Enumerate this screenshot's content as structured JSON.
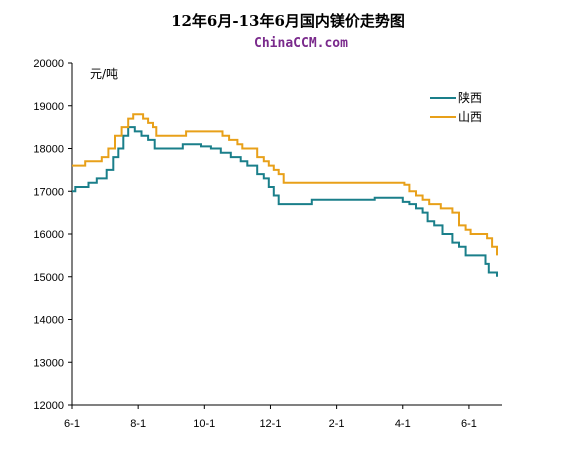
{
  "chart_data": {
    "type": "line",
    "title": "12年6月-13年6月国内镁价走势图",
    "subtitle": "ChinaCCM.com",
    "ylabel": "元/吨",
    "ylim": [
      12000,
      20000
    ],
    "yticks": [
      "20000",
      "19000",
      "18000",
      "17000",
      "16000",
      "15000",
      "14000",
      "13000",
      "12000"
    ],
    "xlim": [
      0,
      13
    ],
    "xticks": [
      {
        "label": "6-1",
        "x": 0
      },
      {
        "label": "8-1",
        "x": 2
      },
      {
        "label": "10-1",
        "x": 4
      },
      {
        "label": "12-1",
        "x": 6
      },
      {
        "label": "2-1",
        "x": 8
      },
      {
        "label": "4-1",
        "x": 10
      },
      {
        "label": "6-1",
        "x": 12
      }
    ],
    "legend_position": "top-right",
    "series": [
      {
        "name": "陕西",
        "color": "#1a7f8a",
        "points": [
          [
            0,
            17000
          ],
          [
            0.1,
            17100
          ],
          [
            0.5,
            17200
          ],
          [
            0.75,
            17300
          ],
          [
            1.05,
            17500
          ],
          [
            1.25,
            17800
          ],
          [
            1.4,
            18000
          ],
          [
            1.55,
            18300
          ],
          [
            1.7,
            18500
          ],
          [
            1.9,
            18400
          ],
          [
            2.1,
            18300
          ],
          [
            2.3,
            18200
          ],
          [
            2.5,
            18000
          ],
          [
            2.8,
            18000
          ],
          [
            3.2,
            18000
          ],
          [
            3.35,
            18100
          ],
          [
            3.7,
            18100
          ],
          [
            3.9,
            18050
          ],
          [
            4.2,
            18000
          ],
          [
            4.5,
            17900
          ],
          [
            4.8,
            17800
          ],
          [
            5.1,
            17700
          ],
          [
            5.3,
            17600
          ],
          [
            5.6,
            17400
          ],
          [
            5.8,
            17300
          ],
          [
            5.95,
            17100
          ],
          [
            6.1,
            16900
          ],
          [
            6.25,
            16700
          ],
          [
            6.5,
            16700
          ],
          [
            7.25,
            16800
          ],
          [
            8.5,
            16800
          ],
          [
            9.0,
            16800
          ],
          [
            9.15,
            16850
          ],
          [
            9.8,
            16850
          ],
          [
            10.0,
            16750
          ],
          [
            10.2,
            16700
          ],
          [
            10.4,
            16600
          ],
          [
            10.6,
            16500
          ],
          [
            10.75,
            16300
          ],
          [
            10.95,
            16200
          ],
          [
            11.2,
            16000
          ],
          [
            11.5,
            15800
          ],
          [
            11.7,
            15700
          ],
          [
            11.9,
            15500
          ],
          [
            12.3,
            15500
          ],
          [
            12.5,
            15300
          ],
          [
            12.6,
            15100
          ],
          [
            12.85,
            15000
          ]
        ]
      },
      {
        "name": "山西",
        "color": "#e8a019",
        "points": [
          [
            0,
            17600
          ],
          [
            0.4,
            17700
          ],
          [
            0.9,
            17800
          ],
          [
            1.1,
            18000
          ],
          [
            1.3,
            18300
          ],
          [
            1.5,
            18500
          ],
          [
            1.7,
            18700
          ],
          [
            1.85,
            18800
          ],
          [
            2.05,
            18800
          ],
          [
            2.15,
            18700
          ],
          [
            2.3,
            18600
          ],
          [
            2.45,
            18500
          ],
          [
            2.55,
            18300
          ],
          [
            2.85,
            18300
          ],
          [
            3.3,
            18300
          ],
          [
            3.45,
            18400
          ],
          [
            4.0,
            18400
          ],
          [
            4.4,
            18400
          ],
          [
            4.55,
            18300
          ],
          [
            4.75,
            18200
          ],
          [
            5.0,
            18100
          ],
          [
            5.15,
            18000
          ],
          [
            5.45,
            18000
          ],
          [
            5.6,
            17800
          ],
          [
            5.8,
            17700
          ],
          [
            5.95,
            17600
          ],
          [
            6.1,
            17500
          ],
          [
            6.25,
            17400
          ],
          [
            6.4,
            17200
          ],
          [
            7.0,
            17200
          ],
          [
            8.0,
            17200
          ],
          [
            9.0,
            17200
          ],
          [
            9.9,
            17200
          ],
          [
            10.05,
            17150
          ],
          [
            10.2,
            17000
          ],
          [
            10.4,
            16900
          ],
          [
            10.6,
            16800
          ],
          [
            10.8,
            16700
          ],
          [
            11.0,
            16700
          ],
          [
            11.15,
            16600
          ],
          [
            11.5,
            16500
          ],
          [
            11.7,
            16200
          ],
          [
            11.9,
            16100
          ],
          [
            12.05,
            16000
          ],
          [
            12.45,
            16000
          ],
          [
            12.55,
            15900
          ],
          [
            12.7,
            15700
          ],
          [
            12.85,
            15500
          ]
        ]
      }
    ]
  }
}
